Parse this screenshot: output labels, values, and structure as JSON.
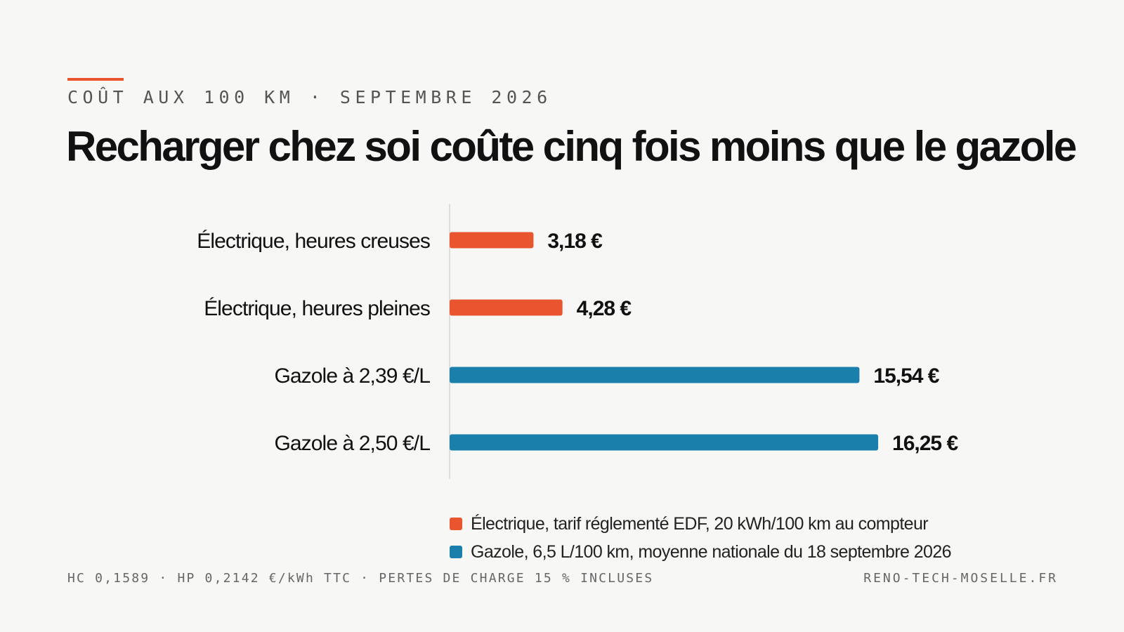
{
  "header": {
    "kicker": "COÛT AUX 100 KM · SEPTEMBRE 2026",
    "title": "Recharger chez soi coûte cinq fois moins que le gazole"
  },
  "chart_data": {
    "type": "bar",
    "orientation": "horizontal",
    "categories": [
      "Électrique, heures creuses",
      "Électrique, heures pleines",
      "Gazole à 2,39 €/L",
      "Gazole à 2,50 €/L"
    ],
    "values": [
      3.18,
      4.28,
      15.54,
      16.25
    ],
    "value_labels": [
      "3,18 €",
      "4,28 €",
      "15,54 €",
      "16,25 €"
    ],
    "groups": [
      "electrique",
      "electrique",
      "gazole",
      "gazole"
    ],
    "xlim": [
      0,
      17.9
    ],
    "grid": false,
    "legend_placement": "bottom",
    "colors": {
      "electrique": "#e8552e",
      "gazole": "#1b7fab"
    }
  },
  "legend": {
    "items": [
      {
        "group": "electrique",
        "label": "Électrique, tarif réglementé EDF, 20 kWh/100 km au compteur"
      },
      {
        "group": "gazole",
        "label": "Gazole, 6,5 L/100 km, moyenne nationale du 18 septembre 2026"
      }
    ]
  },
  "footer": {
    "note": "HC 0,1589 · HP 0,2142 €/kWh TTC · PERTES DE CHARGE 15 % INCLUSES",
    "site": "RENO-TECH-MOSELLE.FR"
  }
}
